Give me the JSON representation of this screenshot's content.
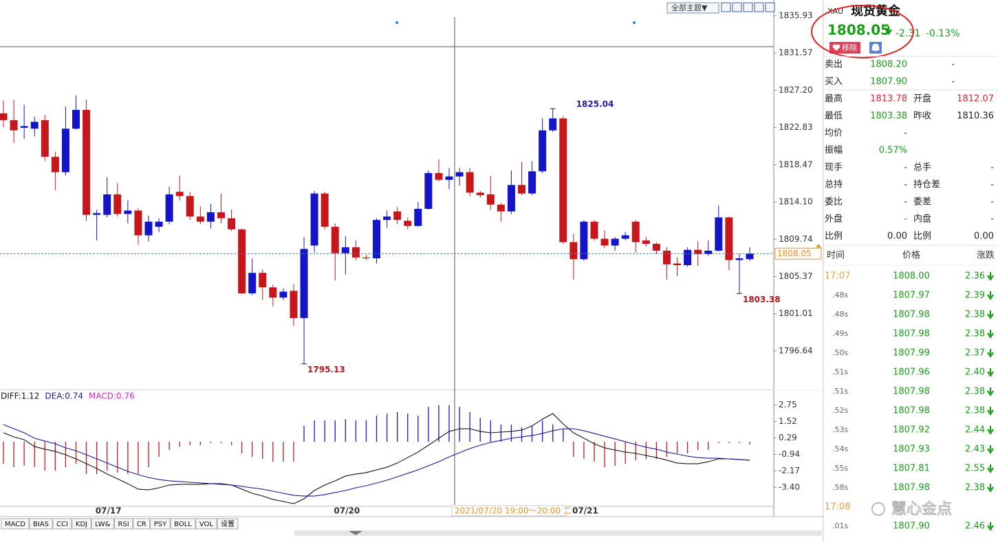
{
  "toolbar": {
    "theme_button": "全部主题▼"
  },
  "chart_data": [
    {
      "type": "candlestick",
      "categories": [
        null,
        null,
        null,
        null,
        null,
        null,
        null,
        null,
        null,
        null,
        "07/17",
        null,
        null,
        null,
        null,
        null,
        null,
        null,
        null,
        null,
        null,
        null,
        null,
        null,
        null,
        null,
        null,
        null,
        null,
        null,
        null,
        null,
        null,
        "07/20",
        null,
        null,
        null,
        null,
        null,
        null,
        null,
        null,
        null,
        null,
        null,
        null,
        null,
        null,
        null,
        null,
        null,
        null,
        null,
        null,
        null,
        null,
        "07/21",
        null,
        null,
        null,
        null,
        null,
        null,
        null,
        null,
        null,
        null,
        null,
        null,
        null,
        null,
        null,
        null
      ],
      "open": [
        1824.5,
        1823.7,
        1822.8,
        1822.7,
        1823.7,
        1819.4,
        1817.6,
        1822.7,
        1824.9,
        1812.6,
        1812.6,
        1815.0,
        1812.7,
        1813.1,
        1810.2,
        1811.2,
        1811.8,
        1815.3,
        1814.8,
        1812.4,
        1811.8,
        1812.9,
        1812.2,
        1810.9,
        1803.4,
        1805.8,
        1804.1,
        1802.9,
        1803.7,
        1800.5,
        1809.0,
        1815.1,
        1811.2,
        1808.1,
        1808.8,
        1807.6,
        1807.5,
        1812.0,
        1813.0,
        1811.9,
        1811.3,
        1813.3,
        1817.5,
        1816.7,
        1817.1,
        1817.6,
        1815.2,
        1815.0,
        1813.8,
        1813.0,
        1816.1,
        1815.1,
        1817.7,
        1822.5,
        1823.9,
        1809.4,
        1807.4,
        1811.8,
        1809.8,
        1809.0,
        1809.8,
        1811.8,
        1809.6,
        1809.2,
        1808.4,
        1806.9,
        1806.7,
        1808.5,
        1808.0,
        1808.4,
        1812.3,
        1807.3,
        1807.4
      ],
      "high": [
        1826.0,
        1826.1,
        1825.5,
        1824.1,
        1824.3,
        1820.0,
        1825.3,
        1826.6,
        1826.1,
        1813.2,
        1817.0,
        1816.3,
        1814.3,
        1813.4,
        1812.5,
        1812.2,
        1815.9,
        1817.2,
        1815.3,
        1813.6,
        1813.9,
        1815.1,
        1813.2,
        1811.0,
        1807.5,
        1806.2,
        1804.4,
        1804.0,
        1804.5,
        1810.0,
        1815.4,
        1815.3,
        1811.6,
        1810.1,
        1809.6,
        1807.9,
        1812.2,
        1813.1,
        1813.5,
        1812.3,
        1814.1,
        1817.8,
        1819.1,
        1818.1,
        1818.1,
        1818.1,
        1815.4,
        1817.2,
        1814.0,
        1817.8,
        1818.8,
        1818.9,
        1823.9,
        1825.04,
        1824.2,
        1810.4,
        1812.0,
        1812.0,
        1810.8,
        1810.0,
        1810.6,
        1812.0,
        1810.0,
        1809.4,
        1808.8,
        1807.6,
        1808.8,
        1809.5,
        1809.6,
        1813.7,
        1812.4,
        1808.0,
        1808.8
      ],
      "low": [
        1822.9,
        1821.0,
        1821.5,
        1821.8,
        1818.9,
        1815.5,
        1817.2,
        1822.6,
        1811.9,
        1809.6,
        1812.3,
        1812.4,
        1811.6,
        1809.1,
        1809.5,
        1810.6,
        1811.5,
        1814.3,
        1812.0,
        1811.5,
        1811.0,
        1811.6,
        1810.7,
        1803.3,
        1803.2,
        1802.6,
        1801.9,
        1802.6,
        1799.6,
        1795.13,
        1808.2,
        1810.9,
        1804.9,
        1805.6,
        1807.3,
        1807.3,
        1806.9,
        1811.1,
        1811.5,
        1810.9,
        1811.2,
        1813.2,
        1816.5,
        1815.6,
        1816.0,
        1814.8,
        1814.6,
        1813.2,
        1811.8,
        1812.7,
        1814.9,
        1814.9,
        1817.5,
        1822.3,
        1809.2,
        1805.0,
        1807.2,
        1809.6,
        1808.7,
        1808.4,
        1809.6,
        1808.2,
        1808.9,
        1808.0,
        1805.0,
        1805.4,
        1806.5,
        1806.6,
        1807.8,
        1808.3,
        1806.1,
        1803.38,
        1807.2
      ],
      "close": [
        1823.7,
        1822.5,
        1823.0,
        1823.5,
        1819.4,
        1817.6,
        1822.7,
        1824.9,
        1812.6,
        1812.8,
        1815.0,
        1812.7,
        1813.1,
        1810.2,
        1811.8,
        1811.8,
        1815.0,
        1814.8,
        1812.4,
        1811.8,
        1812.9,
        1812.2,
        1810.9,
        1803.4,
        1805.8,
        1804.1,
        1802.9,
        1803.6,
        1800.5,
        1808.6,
        1815.1,
        1811.2,
        1808.1,
        1808.8,
        1807.6,
        1807.5,
        1812.0,
        1812.4,
        1812.0,
        1811.3,
        1813.3,
        1817.5,
        1816.7,
        1817.1,
        1817.6,
        1815.2,
        1814.9,
        1813.8,
        1813.0,
        1816.1,
        1815.1,
        1817.7,
        1822.5,
        1823.9,
        1809.4,
        1807.4,
        1811.8,
        1809.8,
        1809.0,
        1809.8,
        1810.2,
        1809.4,
        1809.2,
        1808.4,
        1806.8,
        1806.7,
        1808.5,
        1808.0,
        1808.4,
        1812.3,
        1807.3,
        1807.5,
        1808.05
      ],
      "up_color": "#1414c8",
      "down_color": "#c8161d",
      "last_price_color": "#f08c1e",
      "ylim": [
        1792.29,
        1837.78
      ],
      "yticks": [
        1835.93,
        1831.57,
        {
          "value": 1827.2,
          "label": "1827.20"
        },
        1822.83,
        1818.47,
        {
          "value": 1814.1,
          "label": "1814.10"
        },
        1809.74,
        1805.37,
        1801.01,
        1796.64
      ],
      "grid": false,
      "crosshair_label": "2021/07/20 19:00～20:00 二"
    },
    {
      "type": "macd",
      "readout": [
        {
          "text": "DIFF:1.12",
          "color": "#111111"
        },
        {
          "text": "DEA:0.74",
          "color": "#1a1a9a"
        },
        {
          "text": "MACD:0.76",
          "color": "#e020d0"
        }
      ],
      "series": [
        {
          "color": "#111111",
          "values": [
            0.67,
            0.36,
            0.15,
            -0.36,
            -0.56,
            -0.72,
            -0.97,
            -1.28,
            -1.64,
            -2.0,
            -2.41,
            -2.77,
            -3.13,
            -3.54,
            -3.59,
            -3.44,
            -3.23,
            -3.18,
            -3.18,
            -3.18,
            -3.13,
            -3.13,
            -3.23,
            -3.54,
            -3.85,
            -4.05,
            -4.31,
            -4.46,
            -4.62,
            -4.26,
            -3.64,
            -3.23,
            -2.92,
            -2.56,
            -2.41,
            -2.31,
            -2.1,
            -1.9,
            -1.59,
            -1.18,
            -0.77,
            -0.26,
            0.26,
            0.77,
            0.97,
            0.97,
            0.77,
            0.67,
            0.72,
            0.77,
            0.87,
            1.18,
            1.69,
            2.1,
            1.33,
            0.67,
            0.26,
            -0.15,
            -0.46,
            -0.62,
            -0.77,
            -0.87,
            -1.03,
            -1.18,
            -1.38,
            -1.59,
            -1.64,
            -1.64,
            -1.49,
            -1.28,
            -1.28,
            -1.33,
            -1.38
          ]
        },
        {
          "color": "#1a1a9a",
          "values": [
            1.28,
            0.97,
            0.67,
            0.26,
            0.05,
            -0.15,
            -0.46,
            -0.67,
            -0.97,
            -1.28,
            -1.59,
            -1.9,
            -2.21,
            -2.46,
            -2.67,
            -2.82,
            -2.92,
            -2.97,
            -3.03,
            -3.08,
            -3.13,
            -3.18,
            -3.23,
            -3.33,
            -3.44,
            -3.54,
            -3.69,
            -3.85,
            -4.0,
            -4.05,
            -4.05,
            -3.95,
            -3.79,
            -3.64,
            -3.44,
            -3.28,
            -3.08,
            -2.87,
            -2.62,
            -2.36,
            -2.1,
            -1.79,
            -1.49,
            -1.13,
            -0.82,
            -0.51,
            -0.26,
            -0.05,
            0.1,
            0.26,
            0.36,
            0.46,
            0.62,
            0.82,
            0.97,
            0.97,
            0.82,
            0.62,
            0.41,
            0.21,
            0.0,
            -0.21,
            -0.41,
            -0.56,
            -0.77,
            -0.92,
            -1.08,
            -1.18,
            -1.23,
            -1.23,
            -1.28,
            -1.33,
            -1.38
          ]
        }
      ],
      "histogram": {
        "up_color": "#1414c8",
        "down_color": "#c8161d",
        "values": [
          -1.64,
          -1.9,
          -1.79,
          -1.9,
          -2.15,
          -2.15,
          -1.9,
          -1.64,
          -2.41,
          -2.41,
          -2.15,
          -2.31,
          -2.41,
          -2.41,
          -1.9,
          -1.13,
          -0.62,
          -0.36,
          -0.26,
          -0.26,
          -0.1,
          -0.1,
          -0.26,
          -0.87,
          -1.13,
          -1.28,
          -1.49,
          -1.49,
          -1.49,
          1.18,
          1.59,
          1.59,
          1.59,
          1.69,
          1.59,
          1.59,
          1.95,
          2.1,
          2.21,
          2.1,
          1.95,
          2.62,
          2.72,
          2.72,
          2.62,
          2.21,
          1.79,
          1.59,
          1.28,
          1.28,
          1.08,
          1.18,
          1.59,
          1.28,
          0.92,
          -1.13,
          -1.28,
          -1.49,
          -1.9,
          -1.79,
          -1.64,
          -1.38,
          -1.28,
          -1.28,
          -1.13,
          -0.87,
          -0.87,
          -0.62,
          -0.62,
          -0.1,
          -0.1,
          -0.1,
          -0.21
        ]
      },
      "ylim": [
        -4.87,
        3.08
      ],
      "yticks": [
        2.75,
        1.52,
        0.29,
        -0.94,
        -2.17,
        {
          "value": -3.4,
          "label": "-3.40"
        }
      ]
    }
  ],
  "tabs": [
    "MACD",
    "BIAS",
    "CCI",
    "KDJ",
    "LW&",
    "RSI",
    "CR",
    "PSY",
    "BOLL",
    "VOL",
    "设置"
  ],
  "quote": {
    "symbol": "XAU",
    "name": "现货黄金",
    "price": 1808.05,
    "change": -2.31,
    "change_pct": "-0.13%",
    "remove_button": "移除"
  },
  "fields": [
    [
      {
        "label": "卖出",
        "value": "1808.20",
        "color": "#1a9c1a"
      },
      {
        "value": "-",
        "color": "#333333"
      }
    ],
    [
      {
        "label": "买入",
        "value": "1807.90",
        "color": "#1a9c1a"
      },
      {
        "value": "-",
        "color": "#333333"
      }
    ],
    [
      {
        "label": "最高",
        "value": "1813.78",
        "color": "#d9262c"
      },
      {
        "label": "开盘",
        "value": "1812.07",
        "color": "#d9262c"
      }
    ],
    [
      {
        "label": "最低",
        "value": "1803.38",
        "color": "#1a9c1a"
      },
      {
        "label": "昨收",
        "value": "1810.36",
        "color": "#222222"
      }
    ],
    [
      {
        "label": "均价",
        "value": "-",
        "color": "#333333"
      }
    ],
    [
      {
        "label": "振幅",
        "value": "0.57%",
        "color": "#1a9c1a"
      }
    ],
    [
      {
        "label": "现手",
        "value": "-",
        "color": "#333333"
      },
      {
        "label": "总手",
        "value": "-",
        "color": "#333333"
      }
    ],
    [
      {
        "label": "总持",
        "value": "-",
        "color": "#333333"
      },
      {
        "label": "持仓差",
        "value": "-",
        "color": "#333333"
      }
    ],
    [
      {
        "label": "委比",
        "value": "-",
        "color": "#333333"
      },
      {
        "label": "委差",
        "value": "-",
        "color": "#333333"
      }
    ],
    [
      {
        "label": "外盘",
        "value": "-",
        "color": "#d9262c"
      },
      {
        "label": "内盘",
        "value": "-",
        "color": "#333333"
      }
    ],
    [
      {
        "label": "比例",
        "value": "0.00",
        "color": "#222222"
      },
      {
        "label": "比例",
        "value": "0.00",
        "color": "#222222"
      }
    ]
  ],
  "ticks_table": {
    "headers": [
      "时间",
      "价格",
      "涨跌"
    ],
    "rows": [
      [
        "17:07",
        "1808.00",
        "2.36"
      ],
      [
        ".48s",
        "1807.97",
        "2.39"
      ],
      [
        ".48s",
        "1807.98",
        "2.38"
      ],
      [
        ".49s",
        "1807.98",
        "2.38"
      ],
      [
        ".50s",
        "1807.99",
        "2.37"
      ],
      [
        ".51s",
        "1807.96",
        "2.40"
      ],
      [
        ".51s",
        "1807.98",
        "2.38"
      ],
      [
        ".52s",
        "1807.98",
        "2.38"
      ],
      [
        ".53s",
        "1807.92",
        "2.44"
      ],
      [
        ".54s",
        "1807.93",
        "2.43"
      ],
      [
        ".55s",
        "1807.81",
        "2.55"
      ],
      [
        ".58s",
        "1807.98",
        "2.38"
      ],
      [
        "17:08"
      ],
      [
        ".01s",
        "1807.90",
        "2.46"
      ]
    ]
  },
  "watermark": "慧心金点"
}
